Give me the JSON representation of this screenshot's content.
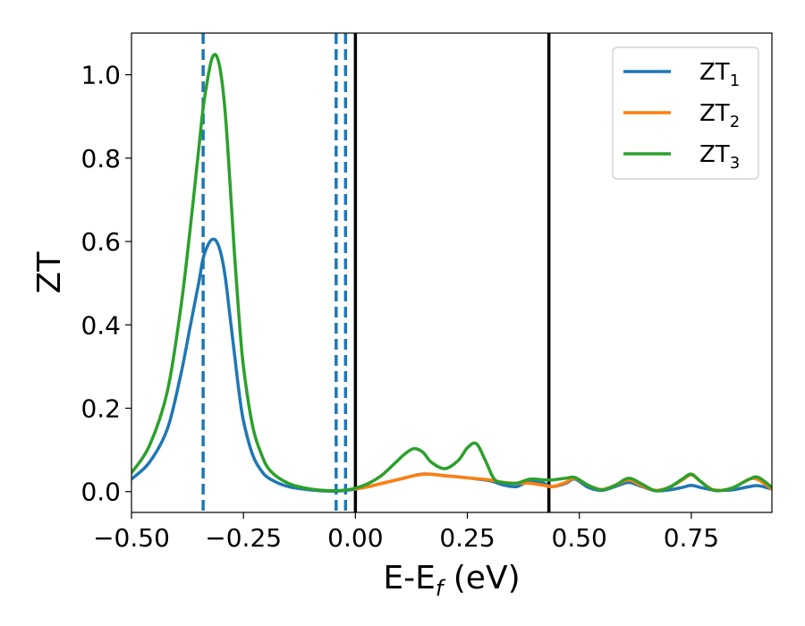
{
  "chart_data": {
    "type": "line",
    "xlabel": "E-E",
    "xlabel_sub": "f",
    "xlabel_unit": " (eV)",
    "ylabel": "ZT",
    "xlim": [
      -0.5,
      0.93
    ],
    "ylim": [
      -0.05,
      1.1
    ],
    "grid": false,
    "legend_position": "top-right",
    "x_ticks": [
      -0.5,
      -0.25,
      0.0,
      0.25,
      0.5,
      0.75
    ],
    "x_tick_labels": [
      "−0.50",
      "−0.25",
      "0.00",
      "0.25",
      "0.50",
      "0.75"
    ],
    "y_ticks": [
      0.0,
      0.2,
      0.4,
      0.6,
      0.8,
      1.0
    ],
    "y_tick_labels": [
      "0.0",
      "0.2",
      "0.4",
      "0.6",
      "0.8",
      "1.0"
    ],
    "series": [
      {
        "name": "ZT",
        "name_sub": "1",
        "color": "#1f77b4",
        "x": [
          -0.5,
          -0.46,
          -0.42,
          -0.39,
          -0.37,
          -0.35,
          -0.34,
          -0.33,
          -0.32,
          -0.31,
          -0.3,
          -0.29,
          -0.28,
          -0.27,
          -0.26,
          -0.25,
          -0.23,
          -0.21,
          -0.19,
          -0.15,
          -0.1,
          -0.05,
          -0.02,
          0.0,
          0.03,
          0.06,
          0.1,
          0.15,
          0.2,
          0.25,
          0.3,
          0.33,
          0.36,
          0.39,
          0.42,
          0.44,
          0.47,
          0.49,
          0.52,
          0.55,
          0.58,
          0.61,
          0.64,
          0.67,
          0.7,
          0.73,
          0.75,
          0.77,
          0.8,
          0.84,
          0.88,
          0.9,
          0.93
        ],
        "y": [
          0.03,
          0.07,
          0.15,
          0.28,
          0.39,
          0.5,
          0.56,
          0.59,
          0.605,
          0.6,
          0.57,
          0.51,
          0.42,
          0.33,
          0.24,
          0.17,
          0.09,
          0.05,
          0.03,
          0.012,
          0.004,
          0.001,
          0.003,
          0.006,
          0.012,
          0.02,
          0.03,
          0.042,
          0.038,
          0.033,
          0.026,
          0.016,
          0.012,
          0.026,
          0.02,
          0.012,
          0.02,
          0.03,
          0.01,
          0.003,
          0.012,
          0.022,
          0.012,
          0.002,
          0.004,
          0.01,
          0.015,
          0.01,
          0.004,
          0.004,
          0.012,
          0.014,
          0.006
        ]
      },
      {
        "name": "ZT",
        "name_sub": "2",
        "color": "#ff7f0e",
        "x": [
          0.0,
          0.03,
          0.06,
          0.1,
          0.13,
          0.16,
          0.2,
          0.25,
          0.3,
          0.33,
          0.36,
          0.39,
          0.42,
          0.44,
          0.47,
          0.49,
          0.52,
          0.55,
          0.58,
          0.61,
          0.64,
          0.67,
          0.7,
          0.73,
          0.75,
          0.77,
          0.8,
          0.84,
          0.88,
          0.9,
          0.93
        ],
        "y": [
          0.006,
          0.012,
          0.02,
          0.03,
          0.038,
          0.042,
          0.038,
          0.033,
          0.028,
          0.022,
          0.02,
          0.02,
          0.015,
          0.012,
          0.022,
          0.032,
          0.015,
          0.005,
          0.015,
          0.028,
          0.014,
          0.003,
          0.01,
          0.028,
          0.04,
          0.025,
          0.004,
          0.008,
          0.03,
          0.028,
          0.006
        ]
      },
      {
        "name": "ZT",
        "name_sub": "3",
        "color": "#2ca02c",
        "x": [
          -0.5,
          -0.46,
          -0.42,
          -0.39,
          -0.37,
          -0.35,
          -0.34,
          -0.33,
          -0.32,
          -0.31,
          -0.3,
          -0.29,
          -0.28,
          -0.27,
          -0.26,
          -0.25,
          -0.23,
          -0.21,
          -0.19,
          -0.15,
          -0.1,
          -0.05,
          -0.02,
          0.0,
          0.03,
          0.06,
          0.09,
          0.11,
          0.13,
          0.15,
          0.17,
          0.2,
          0.23,
          0.25,
          0.27,
          0.29,
          0.31,
          0.33,
          0.36,
          0.39,
          0.42,
          0.44,
          0.47,
          0.49,
          0.52,
          0.55,
          0.58,
          0.61,
          0.64,
          0.67,
          0.7,
          0.73,
          0.75,
          0.77,
          0.8,
          0.84,
          0.88,
          0.9,
          0.93
        ],
        "y": [
          0.045,
          0.11,
          0.24,
          0.44,
          0.62,
          0.82,
          0.92,
          0.99,
          1.04,
          1.045,
          1.0,
          0.9,
          0.74,
          0.57,
          0.42,
          0.3,
          0.16,
          0.09,
          0.05,
          0.02,
          0.006,
          0.002,
          0.004,
          0.008,
          0.02,
          0.04,
          0.07,
          0.09,
          0.103,
          0.095,
          0.07,
          0.055,
          0.075,
          0.105,
          0.115,
          0.075,
          0.03,
          0.022,
          0.02,
          0.03,
          0.028,
          0.028,
          0.032,
          0.034,
          0.015,
          0.004,
          0.015,
          0.032,
          0.018,
          0.002,
          0.01,
          0.03,
          0.042,
          0.025,
          0.003,
          0.008,
          0.03,
          0.034,
          0.01
        ]
      }
    ],
    "vlines": [
      {
        "x": -0.34,
        "style": "dashed",
        "color": "#1f77b4"
      },
      {
        "x": -0.043,
        "style": "dashed",
        "color": "#1f77b4"
      },
      {
        "x": -0.022,
        "style": "dashed",
        "color": "#1f77b4"
      },
      {
        "x": 0.0,
        "style": "solid",
        "color": "#000000"
      },
      {
        "x": 0.432,
        "style": "solid",
        "color": "#000000"
      }
    ]
  }
}
